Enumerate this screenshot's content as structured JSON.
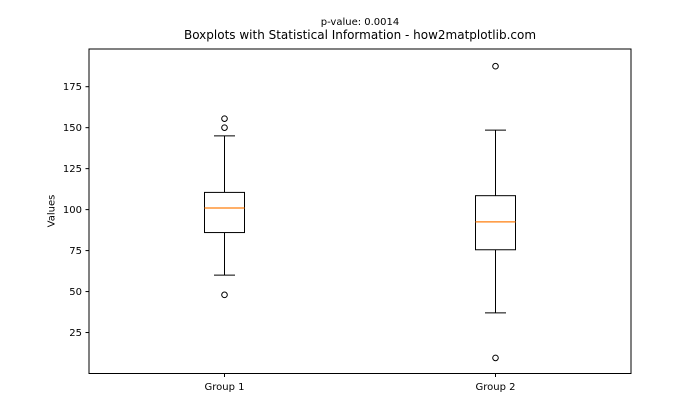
{
  "chart_data": {
    "type": "boxplot",
    "title": "Boxplots with Statistical Information - how2matplotlib.com",
    "annotation": "p-value: 0.0014",
    "ylabel": "Values",
    "xlabel": "",
    "categories": [
      "Group 1",
      "Group 2"
    ],
    "yticks": [
      25,
      50,
      75,
      100,
      125,
      150,
      175
    ],
    "ylim": [
      0,
      198
    ],
    "xlim": [
      0.5,
      2.5
    ],
    "positions": [
      1,
      2
    ],
    "grid": false,
    "legend": "none",
    "series": [
      {
        "name": "Group 1",
        "whisker_low": 60,
        "q1": 86,
        "median": 101,
        "q3": 110.5,
        "whisker_high": 145,
        "outliers": [
          48,
          150,
          155.5
        ]
      },
      {
        "name": "Group 2",
        "whisker_low": 37,
        "q1": 75.5,
        "median": 92.5,
        "q3": 108.5,
        "whisker_high": 148.5,
        "outliers": [
          9.5,
          187.5
        ]
      }
    ],
    "colors": {
      "median": "#ff7f0e",
      "box_edge": "#000000",
      "spine": "#000000",
      "text": "#000000",
      "background": "#ffffff"
    }
  }
}
